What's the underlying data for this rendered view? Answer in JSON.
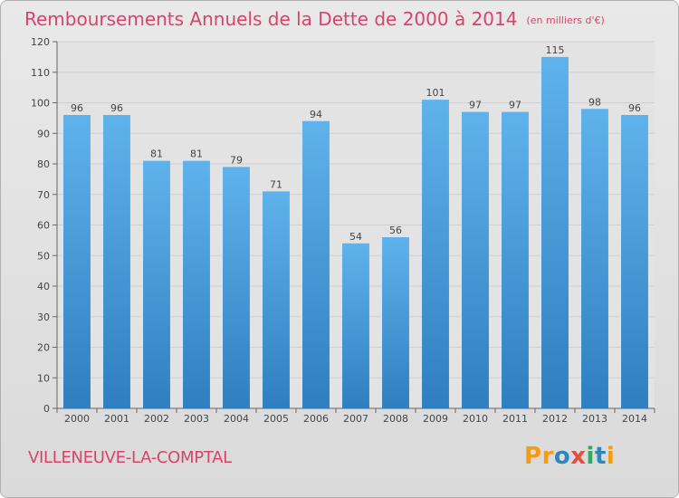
{
  "header": {
    "title": "Remboursements Annuels de la Dette de 2000 à 2014",
    "unit": "(en milliers d'€)"
  },
  "footer": {
    "commune": "VILLENEUVE-LA-COMPTAL",
    "logo_text": "Proxiti",
    "logo_colors": [
      "#f39c12",
      "#f39c12",
      "#2e86c1",
      "#e74c3c",
      "#27ae60",
      "#2e86c1",
      "#f39c12"
    ]
  },
  "chart_data": {
    "type": "bar",
    "title": "Remboursements Annuels de la Dette de 2000 à 2014",
    "xlabel": "",
    "ylabel": "",
    "categories": [
      "2000",
      "2001",
      "2002",
      "2003",
      "2004",
      "2005",
      "2006",
      "2007",
      "2008",
      "2009",
      "2010",
      "2011",
      "2012",
      "2013",
      "2014"
    ],
    "values": [
      96,
      96,
      81,
      81,
      79,
      71,
      94,
      54,
      56,
      101,
      97,
      97,
      115,
      98,
      96
    ],
    "ylim": [
      0,
      120
    ],
    "yticks": [
      0,
      10,
      20,
      30,
      40,
      50,
      60,
      70,
      80,
      90,
      100,
      110,
      120
    ],
    "grid": true,
    "colors": {
      "bar_light": "#5fb3ec",
      "bar_dark": "#2f7fc0",
      "plot_bg": "#e3e3e3",
      "grid": "#cfcfcf",
      "text": "#444444"
    }
  }
}
